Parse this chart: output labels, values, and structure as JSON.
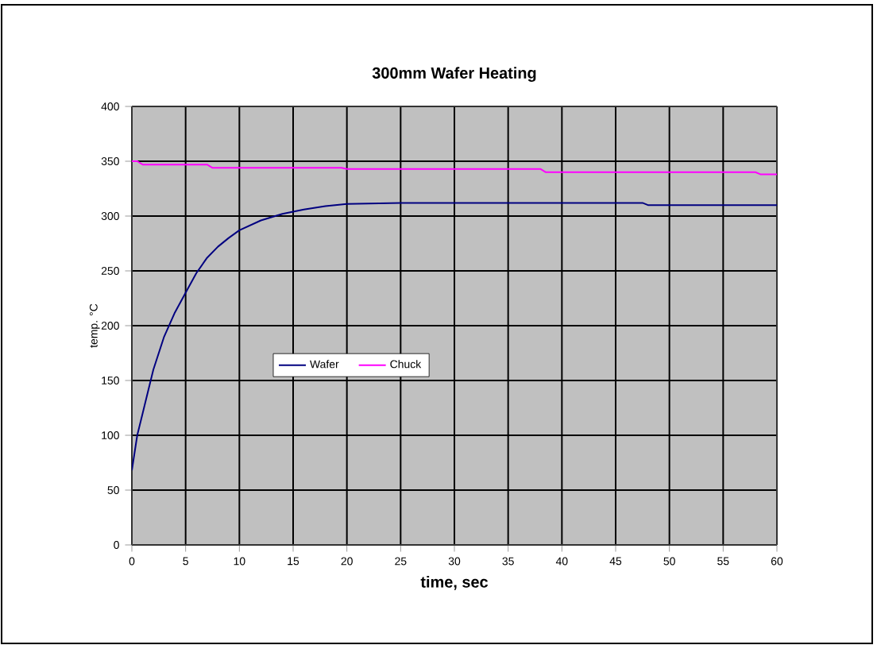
{
  "chart_data": {
    "type": "line",
    "title": "300mm Wafer Heating",
    "xlabel": "time, sec",
    "ylabel": "temp. °C",
    "xlim": [
      0,
      60
    ],
    "xticks": [
      0,
      5,
      10,
      15,
      20,
      25,
      30,
      35,
      40,
      45,
      50,
      55,
      60
    ],
    "ylim": [
      0,
      400
    ],
    "yticks": [
      0,
      50,
      100,
      150,
      200,
      250,
      300,
      350,
      400
    ],
    "grid": true,
    "legend": "left",
    "marker": "none",
    "line_style": "solid",
    "series": [
      {
        "name": "Wafer",
        "color": "#000080",
        "x": [
          0,
          0.5,
          1,
          2,
          3,
          4,
          5,
          6,
          7,
          8,
          9,
          10,
          12,
          14,
          16,
          18,
          20,
          25,
          30,
          40,
          47.5,
          48,
          60
        ],
        "values": [
          68,
          100,
          120,
          160,
          190,
          212,
          230,
          248,
          262,
          272,
          280,
          287,
          296,
          302,
          306,
          309,
          311,
          312,
          312,
          312,
          312,
          310,
          310
        ]
      },
      {
        "name": "Chuck",
        "color": "#ff00ff",
        "x": [
          0,
          0.5,
          1,
          7,
          7.5,
          19.5,
          20,
          38,
          38.5,
          58,
          58.5,
          60
        ],
        "values": [
          350,
          350,
          347,
          347,
          344,
          344,
          343,
          343,
          340,
          340,
          338,
          338
        ]
      }
    ]
  }
}
